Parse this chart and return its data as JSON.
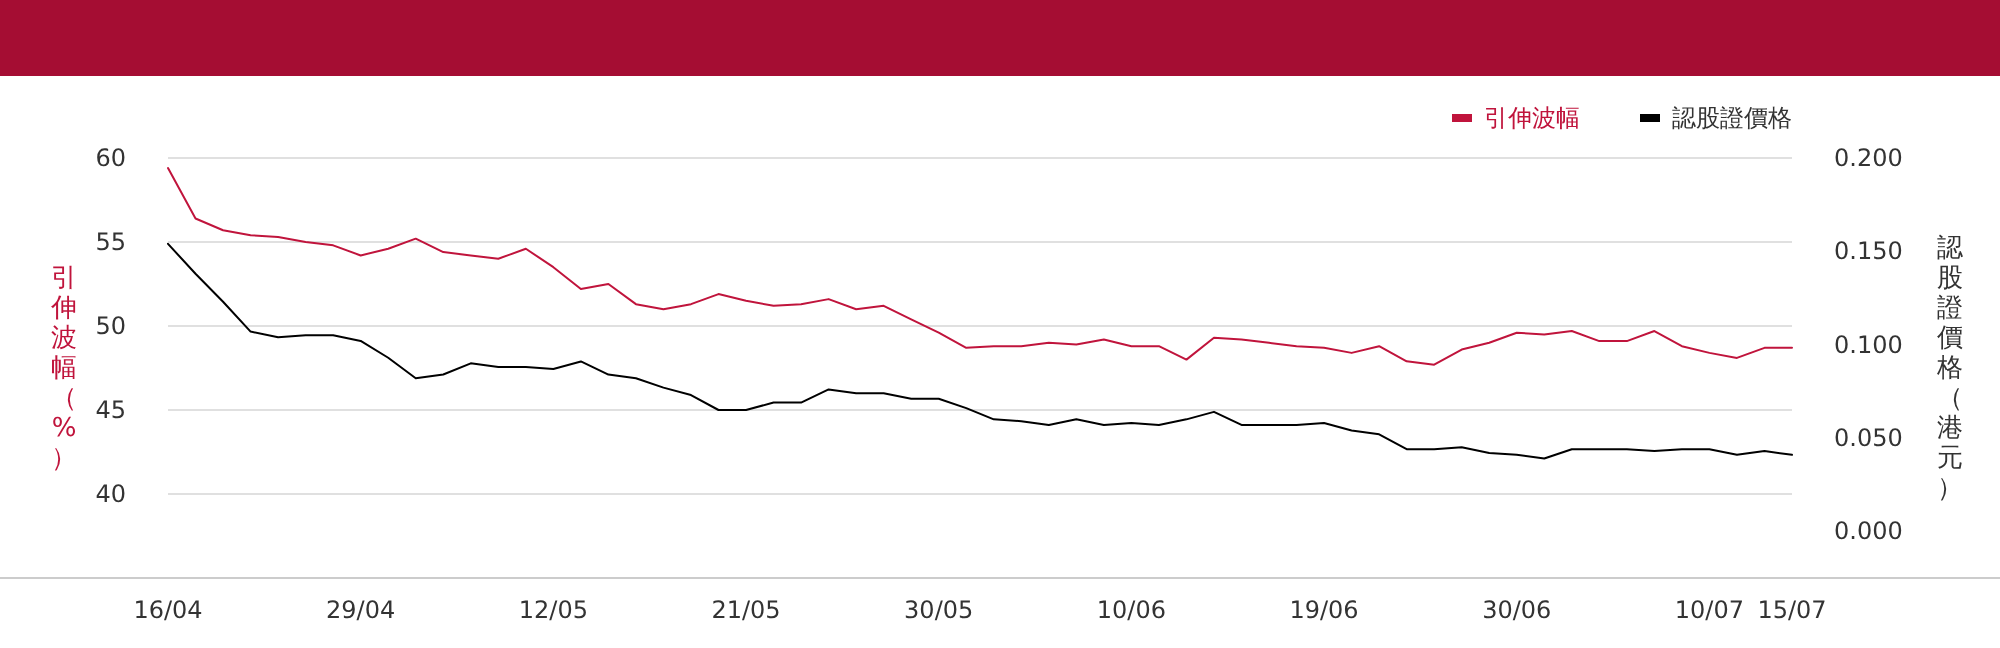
{
  "chart_data": {
    "type": "line",
    "ylabel": "引伸波幅（%）",
    "y2label": "認股證價格（港元）",
    "categories": [
      "16/04",
      null,
      null,
      null,
      null,
      null,
      null,
      "29/04",
      null,
      null,
      null,
      null,
      null,
      null,
      "12/05",
      null,
      null,
      null,
      null,
      null,
      null,
      "21/05",
      null,
      null,
      null,
      null,
      null,
      null,
      "30/05",
      null,
      null,
      null,
      null,
      null,
      null,
      "10/06",
      null,
      null,
      null,
      null,
      null,
      null,
      "19/06",
      null,
      null,
      null,
      null,
      null,
      null,
      "30/06",
      null,
      null,
      null,
      null,
      null,
      null,
      "10/07",
      null,
      null,
      "15/07"
    ],
    "series": [
      {
        "name": "引伸波幅",
        "color": "#c0143c",
        "values": [
          59.4,
          56.4,
          55.7,
          55.4,
          55.3,
          55.0,
          54.8,
          54.2,
          54.6,
          55.2,
          54.4,
          54.2,
          54.0,
          54.6,
          53.5,
          52.2,
          52.5,
          51.3,
          51.0,
          51.3,
          51.9,
          51.5,
          51.2,
          51.3,
          51.6,
          51.0,
          51.2,
          50.4,
          49.6,
          48.7,
          48.8,
          48.8,
          49.0,
          48.9,
          49.2,
          48.8,
          48.8,
          48.0,
          49.3,
          49.2,
          49.0,
          48.8,
          48.7,
          48.4,
          48.8,
          47.9,
          47.7,
          48.6,
          49.0,
          49.6,
          49.5,
          49.7,
          49.1,
          49.1,
          49.7,
          48.8,
          48.4,
          48.1,
          48.7,
          48.7
        ]
      },
      {
        "name": "認股證價格",
        "color": "#000000",
        "axis": "y2",
        "values": [
          0.154,
          0.138,
          0.123,
          0.107,
          0.104,
          0.105,
          0.105,
          0.102,
          0.093,
          0.082,
          0.084,
          0.09,
          0.088,
          0.088,
          0.087,
          0.091,
          0.084,
          0.082,
          0.077,
          0.073,
          0.065,
          0.065,
          0.069,
          0.069,
          0.076,
          0.074,
          0.074,
          0.071,
          0.071,
          0.066,
          0.06,
          0.059,
          0.057,
          0.06,
          0.057,
          0.058,
          0.057,
          0.06,
          0.064,
          0.057,
          0.057,
          0.057,
          0.058,
          0.054,
          0.052,
          0.044,
          0.044,
          0.045,
          0.042,
          0.041,
          0.039,
          0.044,
          0.044,
          0.044,
          0.043,
          0.044,
          0.044,
          0.041,
          0.043,
          0.041
        ]
      }
    ],
    "ylim": [
      35,
      60
    ],
    "yticks": [
      40,
      45,
      50,
      55,
      60
    ],
    "y2lim": [
      -0.025,
      0.2
    ],
    "y2ticks": [
      {
        "value": 0,
        "label": "0.000"
      },
      {
        "value": 0.05,
        "label": "0.050"
      },
      {
        "value": 0.1,
        "label": "0.100"
      },
      {
        "value": 0.15,
        "label": "0.150"
      },
      {
        "value": 0.2,
        "label": "0.200"
      }
    ],
    "grid": "y",
    "legend": "top right",
    "marker": "none",
    "line_style": "solid"
  }
}
